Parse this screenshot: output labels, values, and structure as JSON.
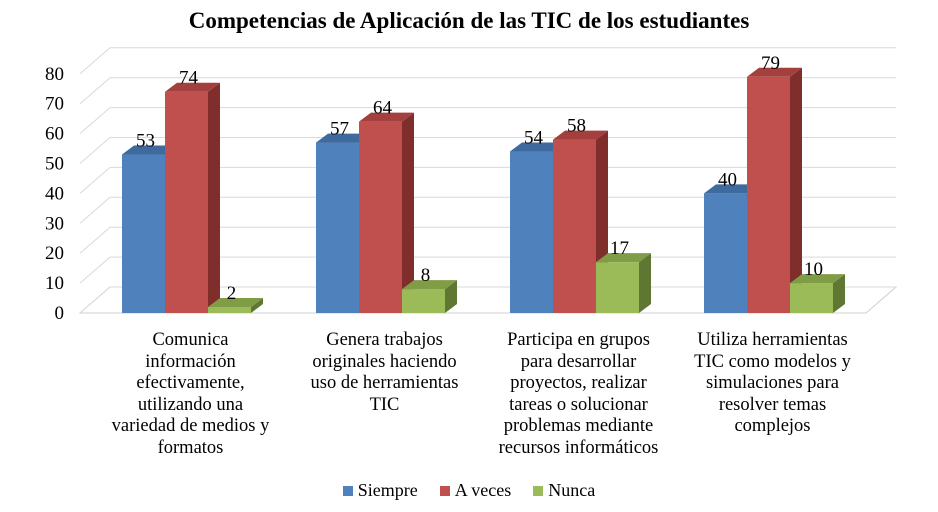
{
  "chart_data": {
    "type": "bar",
    "variant": "3d-clustered-column",
    "title": "Competencias de Aplicación de las TIC de los estudiantes",
    "categories": [
      "Comunica información efectivamente, utilizando una variedad de medios y formatos",
      "Genera trabajos originales haciendo uso de herramientas TIC",
      "Participa en grupos para desarrollar proyectos, realizar tareas o solucionar problemas mediante recursos informáticos",
      "Utiliza herramientas TIC como modelos y simulaciones para resolver temas complejos"
    ],
    "category_lines": [
      [
        "Comunica",
        "información",
        "efectivamente,",
        "utilizando una",
        "variedad de medios y",
        "formatos"
      ],
      [
        "Genera trabajos",
        "originales haciendo",
        "uso de herramientas",
        "TIC"
      ],
      [
        "Participa en grupos",
        "para desarrollar",
        "proyectos, realizar",
        "tareas o solucionar",
        "problemas mediante",
        "recursos informáticos"
      ],
      [
        "Utiliza herramientas",
        "TIC como modelos y",
        "simulaciones para",
        "resolver temas",
        "complejos"
      ]
    ],
    "series": [
      {
        "name": "Siempre",
        "values": [
          53,
          57,
          54,
          40
        ],
        "color": "#4F81BD",
        "top": "#3F6A9E",
        "side": "#2F4F79"
      },
      {
        "name": "A veces",
        "values": [
          74,
          64,
          58,
          79
        ],
        "color": "#C0504D",
        "top": "#A33F3C",
        "side": "#7F2E2C"
      },
      {
        "name": "Nunca",
        "values": [
          2,
          8,
          17,
          10
        ],
        "color": "#9BBB59",
        "top": "#809C45",
        "side": "#5F7732"
      }
    ],
    "yticks": [
      0,
      10,
      20,
      30,
      40,
      50,
      60,
      70,
      80
    ],
    "ylim": [
      0,
      80
    ],
    "grid": true,
    "data_labels": true,
    "legend": "bottom"
  }
}
